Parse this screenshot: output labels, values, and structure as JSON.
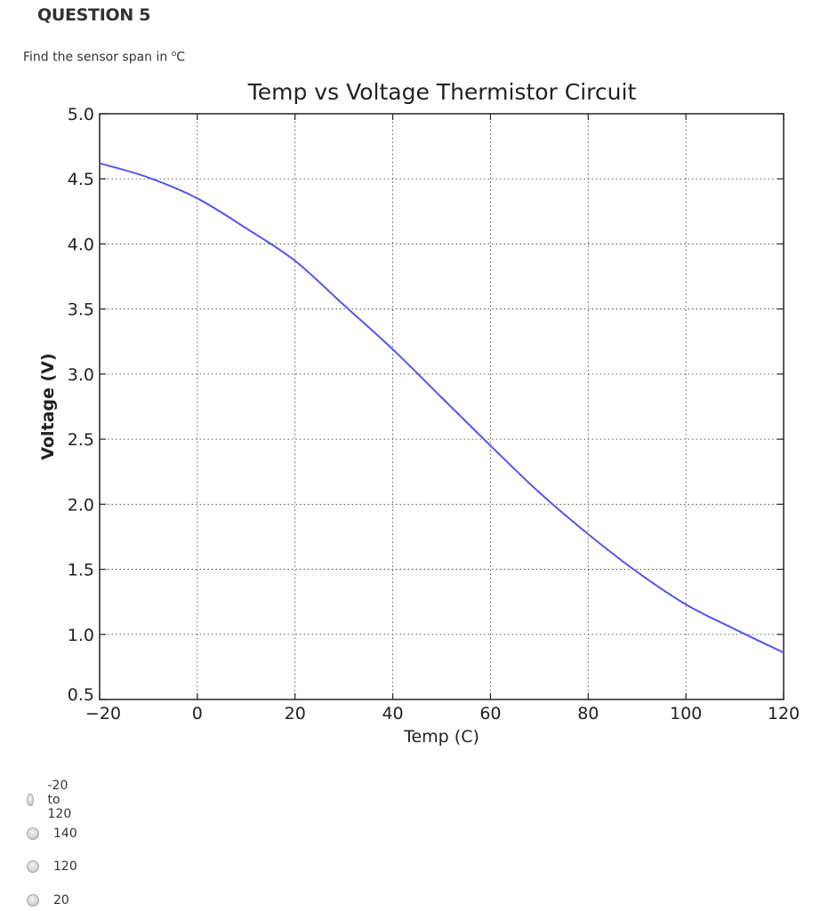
{
  "question": {
    "title": "QUESTION 5",
    "prompt": "Find the sensor span in",
    "prompt_degree": "o",
    "prompt_unit": "C"
  },
  "chart_data": {
    "type": "line",
    "title": "Temp vs Voltage Thermistor Circuit",
    "xlabel": "Temp (C)",
    "ylabel": "Voltage (V)",
    "xlim": [
      -20,
      120
    ],
    "ylim": [
      0.5,
      5.0
    ],
    "xticks": [
      -20,
      0,
      20,
      40,
      60,
      80,
      100,
      120
    ],
    "yticks": [
      0.5,
      1.0,
      1.5,
      2.0,
      2.5,
      3.0,
      3.5,
      4.0,
      4.5,
      5.0
    ],
    "grid": true,
    "series_color": "#5555ee",
    "series": [
      {
        "x": [
          -20,
          -10,
          0,
          10,
          20,
          30,
          40,
          50,
          60,
          70,
          80,
          90,
          100,
          110,
          120
        ],
        "y": [
          4.62,
          4.51,
          4.35,
          4.12,
          3.87,
          3.53,
          3.19,
          2.82,
          2.45,
          2.09,
          1.77,
          1.48,
          1.23,
          1.04,
          0.86
        ]
      }
    ]
  },
  "options": [
    {
      "label": "-20 to 120"
    },
    {
      "label": "140"
    },
    {
      "label": "120"
    },
    {
      "label": "20"
    }
  ]
}
